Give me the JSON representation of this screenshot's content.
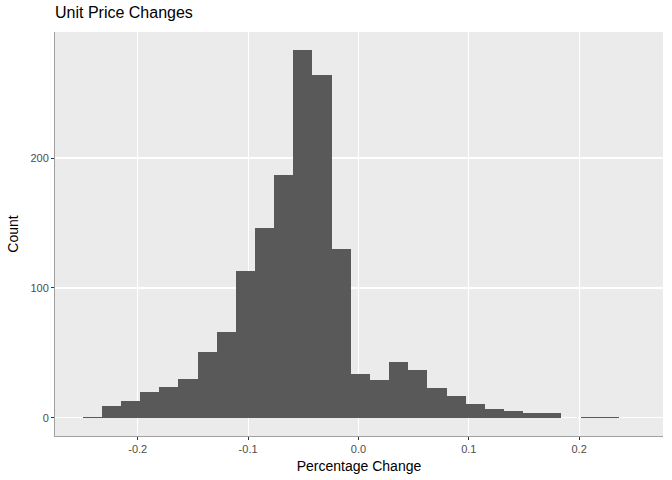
{
  "chart_data": {
    "type": "histogram",
    "title": "Unit Price Changes",
    "x_label": "Percentage Change",
    "y_label": "Count",
    "bins": [
      -0.25,
      -0.2326,
      -0.2153,
      -0.1979,
      -0.1806,
      -0.1632,
      -0.1458,
      -0.1285,
      -0.1111,
      -0.0938,
      -0.0764,
      -0.059,
      -0.0417,
      -0.0243,
      -0.007,
      0.0104,
      0.0278,
      0.0451,
      0.0625,
      0.0798,
      0.0972,
      0.1146,
      0.1319,
      0.1493,
      0.1666,
      0.184,
      0.2014,
      0.2187,
      0.2361
    ],
    "values": [
      1,
      9,
      13,
      20,
      24,
      30,
      51,
      66,
      113,
      146,
      187,
      283,
      264,
      130,
      34,
      29,
      43,
      37,
      23,
      17,
      11,
      7,
      5,
      4,
      4,
      0,
      1,
      1
    ],
    "color": "#595959",
    "xlim": [
      -0.275,
      0.276
    ],
    "xticks": [
      -0.2,
      -0.1,
      {
        "value": 0,
        "label": "0.0"
      },
      0.1,
      0.2
    ],
    "ylim": [
      -14,
      297
    ],
    "yticks": [
      0,
      100,
      200
    ],
    "grid": true
  }
}
